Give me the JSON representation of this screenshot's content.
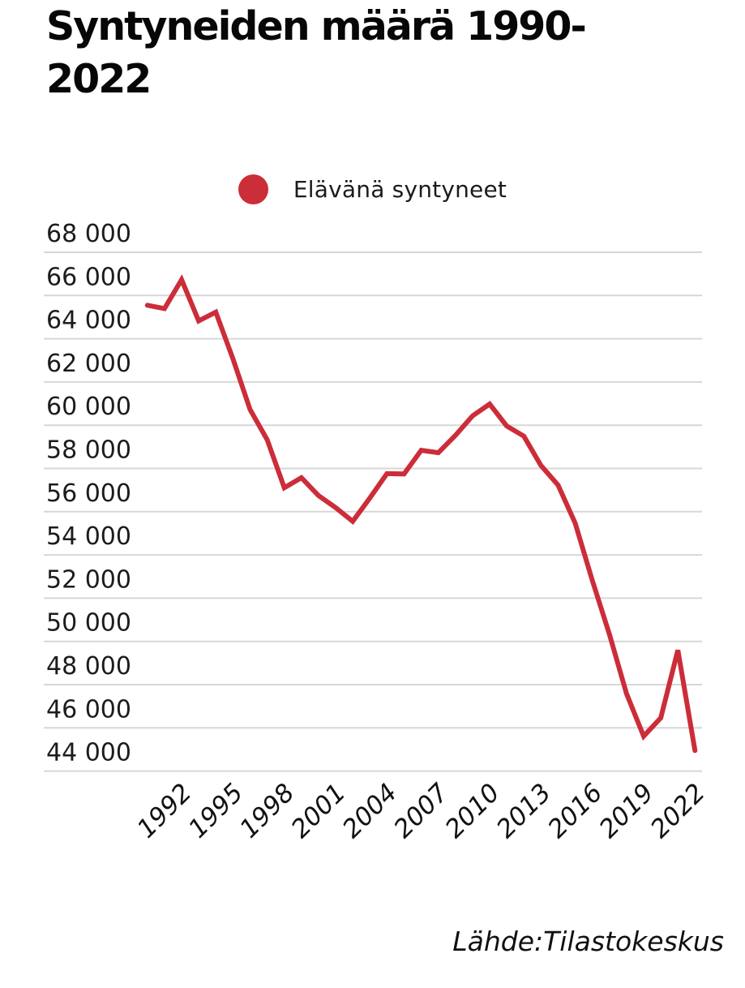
{
  "title": {
    "line1": "Syntyneiden määrä 1990-",
    "line2": "2022",
    "full": "Syntyneiden määrä 1990-2022"
  },
  "legend": {
    "label": "Elävänä syntyneet",
    "marker_color": "#cb2d39"
  },
  "source": "Lähde:Tilastokeskus",
  "colors": {
    "line": "#cb2d39",
    "gridline": "#d7d7d7",
    "axis_text": "#1c1c1c",
    "x_tick_text": "#111111",
    "background": "#ffffff"
  },
  "chart_data": {
    "type": "line",
    "title": "Syntyneiden määrä 1990-2022",
    "xlabel": "",
    "ylabel": "",
    "x": [
      1990,
      1991,
      1992,
      1993,
      1994,
      1995,
      1996,
      1997,
      1998,
      1999,
      2000,
      2001,
      2002,
      2003,
      2004,
      2005,
      2006,
      2007,
      2008,
      2009,
      2010,
      2011,
      2012,
      2013,
      2014,
      2015,
      2016,
      2017,
      2018,
      2019,
      2020,
      2021,
      2022
    ],
    "series": [
      {
        "name": "Elävänä syntyneet",
        "color": "#cb2d39",
        "values": [
          65549,
          65395,
          66731,
          64826,
          65231,
          63067,
          60723,
          59329,
          57108,
          57574,
          56742,
          56189,
          55555,
          56630,
          57758,
          57745,
          58840,
          58729,
          59530,
          60430,
          60980,
          59961,
          59493,
          58134,
          57232,
          55472,
          52814,
          50321,
          47577,
          45613,
          46463,
          49594,
          44951
        ]
      }
    ],
    "ylim": [
      44000,
      68000
    ],
    "y_ticks": [
      {
        "value": 68000,
        "label": "68 000"
      },
      {
        "value": 66000,
        "label": "66 000"
      },
      {
        "value": 64000,
        "label": "64 000"
      },
      {
        "value": 62000,
        "label": "62 000"
      },
      {
        "value": 60000,
        "label": "60 000"
      },
      {
        "value": 58000,
        "label": "58 000"
      },
      {
        "value": 56000,
        "label": "56 000"
      },
      {
        "value": 54000,
        "label": "54 000"
      },
      {
        "value": 52000,
        "label": "52 000"
      },
      {
        "value": 50000,
        "label": "50 000"
      },
      {
        "value": 48000,
        "label": "48 000"
      },
      {
        "value": 46000,
        "label": "46 000"
      },
      {
        "value": 44000,
        "label": "44 000"
      }
    ],
    "x_ticks": [
      "1992",
      "1995",
      "1998",
      "2001",
      "2004",
      "2007",
      "2010",
      "2013",
      "2016",
      "2019",
      "2022"
    ],
    "grid": "horizontal-only",
    "legend_position": "top-center",
    "x_tick_rotation_deg": -45
  }
}
